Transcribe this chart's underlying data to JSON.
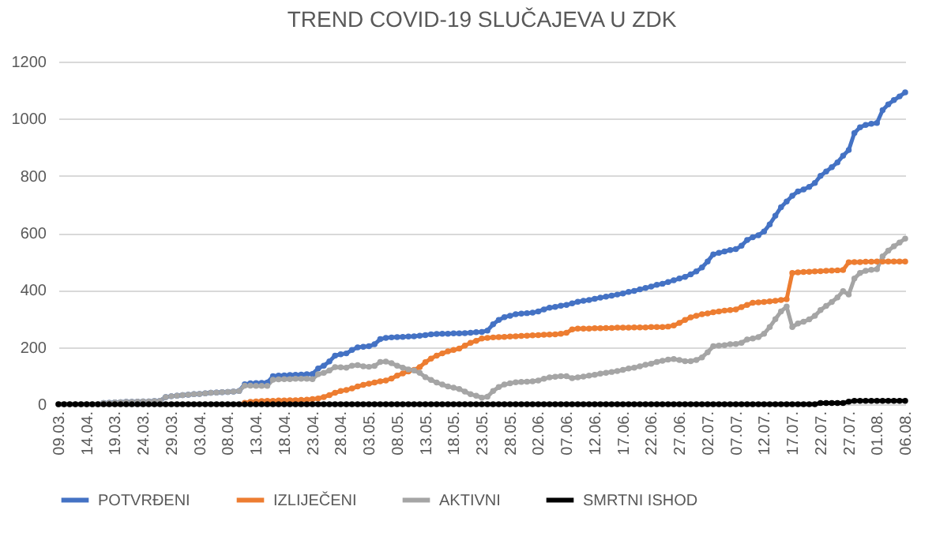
{
  "chart_data": {
    "type": "line",
    "title": "TREND COVID-19 SLUČAJEVA U ZDK",
    "x": [
      "--03-09",
      "--03-10",
      "--03-11",
      "--03-12",
      "--03-13",
      "--03-14",
      "--03-15",
      "--03-16",
      "--03-17",
      "--03-18",
      "--03-19",
      "--03-20",
      "--03-21",
      "--03-22",
      "--03-23",
      "--03-24",
      "--03-25",
      "--03-26",
      "--03-27",
      "--03-28",
      "--03-29",
      "--03-30",
      "--03-31",
      "--04-01",
      "--04-02",
      "--04-03",
      "--04-04",
      "--04-05",
      "--04-06",
      "--04-07",
      "--04-08",
      "--04-09",
      "--04-10",
      "--04-11",
      "--04-12",
      "--04-13",
      "--04-14",
      "--04-15",
      "--04-16",
      "--04-17",
      "--04-18",
      "--04-19",
      "--04-20",
      "--04-21",
      "--04-22",
      "--04-23",
      "--04-24",
      "--04-25",
      "--04-26",
      "--04-27",
      "--04-28",
      "--04-29",
      "--04-30",
      "--05-01",
      "--05-02",
      "--05-03",
      "--05-04",
      "--05-05",
      "--05-06",
      "--05-07",
      "--05-08",
      "--05-09",
      "--05-10",
      "--05-11",
      "--05-12",
      "--05-13",
      "--05-14",
      "--05-15",
      "--05-16",
      "--05-17",
      "--05-18",
      "--05-19",
      "--05-20",
      "--05-21",
      "--05-22",
      "--05-23",
      "--05-24",
      "--05-25",
      "--05-26",
      "--05-27",
      "--05-28",
      "--05-29",
      "--05-30",
      "--05-31",
      "--06-01",
      "--06-02",
      "--06-03",
      "--06-04",
      "--06-05",
      "--06-06",
      "--06-07",
      "--06-08",
      "--06-09",
      "--06-10",
      "--06-11",
      "--06-12",
      "--06-13",
      "--06-14",
      "--06-15",
      "--06-16",
      "--06-17",
      "--06-18",
      "--06-19",
      "--06-20",
      "--06-21",
      "--06-22",
      "--06-23",
      "--06-24",
      "--06-25",
      "--06-26",
      "--06-27",
      "--06-28",
      "--06-29",
      "--06-30",
      "--07-01",
      "--07-02",
      "--07-03",
      "--07-04",
      "--07-05",
      "--07-06",
      "--07-07",
      "--07-08",
      "--07-09",
      "--07-10",
      "--07-11",
      "--07-12",
      "--07-13",
      "--07-14",
      "--07-15",
      "--07-16",
      "--07-17",
      "--07-18",
      "--07-19",
      "--07-20",
      "--07-21",
      "--07-22",
      "--07-23",
      "--07-24",
      "--07-25",
      "--07-26",
      "--07-27",
      "--07-28",
      "--07-29",
      "--07-30",
      "--07-31",
      "--08-01",
      "--08-02",
      "--08-03",
      "--08-04",
      "--08-05",
      "--08-06"
    ],
    "xlim": [
      "--03-09",
      "--08-06"
    ],
    "xticks": [
      {
        "value": "--03-09",
        "label": "09.03."
      },
      {
        "value": "--03-14",
        "label": "14.04."
      },
      {
        "value": "--03-19",
        "label": "19.03."
      },
      {
        "value": "--03-24",
        "label": "24.03."
      },
      {
        "value": "--03-29",
        "label": "29.03."
      },
      {
        "value": "--04-03",
        "label": "03.04."
      },
      {
        "value": "--04-08",
        "label": "08.04."
      },
      {
        "value": "--04-13",
        "label": "13.04."
      },
      {
        "value": "--04-18",
        "label": "18.04."
      },
      {
        "value": "--04-23",
        "label": "23.04."
      },
      {
        "value": "--04-28",
        "label": "28.04."
      },
      {
        "value": "--05-03",
        "label": "03.05."
      },
      {
        "value": "--05-08",
        "label": "08.05."
      },
      {
        "value": "--05-13",
        "label": "13.05."
      },
      {
        "value": "--05-18",
        "label": "18.05."
      },
      {
        "value": "--05-23",
        "label": "23.05."
      },
      {
        "value": "--05-28",
        "label": "28.05."
      },
      {
        "value": "--06-02",
        "label": "02.06."
      },
      {
        "value": "--06-07",
        "label": "07.06."
      },
      {
        "value": "--06-12",
        "label": "12.06."
      },
      {
        "value": "--06-17",
        "label": "17.06."
      },
      {
        "value": "--06-22",
        "label": "22.06."
      },
      {
        "value": "--06-27",
        "label": "27.06."
      },
      {
        "value": "--07-02",
        "label": "02.07."
      },
      {
        "value": "--07-07",
        "label": "07.07."
      },
      {
        "value": "--07-12",
        "label": "12.07."
      },
      {
        "value": "--07-17",
        "label": "17.07."
      },
      {
        "value": "--07-22",
        "label": "22.07."
      },
      {
        "value": "--07-27",
        "label": "27.07."
      },
      {
        "value": "--08-01",
        "label": "01.08."
      },
      {
        "value": "--08-06",
        "label": "06.08."
      }
    ],
    "series": [
      {
        "name": "POTVRĐENI",
        "color": "#4472c4",
        "values": [
          null,
          null,
          null,
          null,
          null,
          null,
          null,
          null,
          4,
          5,
          6,
          7,
          8,
          8,
          9,
          10,
          10,
          11,
          12,
          25,
          28,
          30,
          32,
          33,
          35,
          36,
          38,
          40,
          41,
          42,
          43,
          44,
          46,
          70,
          73,
          74,
          75,
          76,
          98,
          100,
          101,
          102,
          103,
          104,
          105,
          106,
          125,
          135,
          150,
          170,
          175,
          178,
          190,
          199,
          201,
          203,
          210,
          228,
          232,
          234,
          235,
          236,
          237,
          238,
          240,
          242,
          245,
          246,
          247,
          247,
          248,
          248,
          249,
          250,
          252,
          253,
          258,
          280,
          295,
          305,
          310,
          315,
          317,
          319,
          321,
          325,
          332,
          338,
          341,
          345,
          348,
          353,
          359,
          362,
          365,
          369,
          373,
          377,
          380,
          384,
          388,
          393,
          397,
          402,
          407,
          412,
          418,
          422,
          428,
          434,
          440,
          446,
          455,
          465,
          479,
          500,
          525,
          530,
          535,
          540,
          543,
          555,
          575,
          585,
          592,
          605,
          630,
          660,
          690,
          710,
          730,
          745,
          752,
          761,
          775,
          800,
          815,
          830,
          847,
          870,
          890,
          950,
          970,
          978,
          982,
          985,
          1030,
          1050,
          1065,
          1078,
          1092
        ]
      },
      {
        "name": "IZLIJEČENI",
        "color": "#ed7d31",
        "values": [
          null,
          null,
          null,
          null,
          null,
          null,
          null,
          null,
          null,
          null,
          null,
          null,
          null,
          null,
          null,
          null,
          null,
          null,
          null,
          null,
          null,
          null,
          null,
          null,
          null,
          null,
          null,
          null,
          null,
          null,
          null,
          null,
          null,
          5,
          8,
          10,
          11,
          12,
          12,
          13,
          13,
          14,
          14,
          15,
          16,
          18,
          20,
          25,
          32,
          40,
          46,
          50,
          55,
          62,
          68,
          72,
          76,
          80,
          83,
          90,
          100,
          108,
          115,
          120,
          130,
          147,
          160,
          170,
          178,
          185,
          190,
          195,
          205,
          215,
          222,
          230,
          232,
          234,
          235,
          236,
          237,
          238,
          239,
          240,
          241,
          242,
          243,
          244,
          245,
          247,
          250,
          262,
          265,
          265,
          265,
          266,
          266,
          267,
          267,
          268,
          268,
          268,
          269,
          269,
          269,
          270,
          270,
          270,
          272,
          276,
          285,
          295,
          304,
          310,
          315,
          318,
          322,
          325,
          328,
          330,
          332,
          340,
          348,
          355,
          357,
          358,
          360,
          362,
          365,
          368,
          460,
          462,
          463,
          464,
          465,
          466,
          467,
          468,
          469,
          470,
          497,
          498,
          498,
          499,
          499,
          500,
          500,
          500,
          500,
          500,
          500
        ]
      },
      {
        "name": "AKTIVNI",
        "color": "#a5a5a5",
        "values": [
          0,
          0,
          0,
          0,
          0,
          0,
          0,
          0,
          4,
          5,
          6,
          7,
          8,
          8,
          9,
          10,
          10,
          11,
          12,
          25,
          28,
          30,
          32,
          33,
          35,
          36,
          38,
          40,
          41,
          42,
          43,
          44,
          46,
          65,
          65,
          64,
          64,
          64,
          86,
          87,
          88,
          88,
          89,
          89,
          89,
          88,
          105,
          110,
          118,
          130,
          129,
          128,
          135,
          137,
          133,
          131,
          134,
          148,
          149,
          144,
          135,
          128,
          122,
          118,
          110,
          95,
          85,
          76,
          69,
          62,
          58,
          53,
          44,
          35,
          30,
          23,
          26,
          46,
          60,
          69,
          73,
          77,
          78,
          79,
          80,
          83,
          89,
          94,
          96,
          98,
          98,
          91,
          94,
          97,
          100,
          103,
          107,
          110,
          113,
          116,
          120,
          125,
          128,
          133,
          138,
          142,
          148,
          152,
          156,
          158,
          155,
          151,
          151,
          155,
          164,
          182,
          203,
          205,
          207,
          210,
          211,
          215,
          227,
          230,
          235,
          247,
          270,
          298,
          325,
          342,
          270,
          283,
          289,
          297,
          310,
          330,
          344,
          358,
          374,
          396,
          384,
          440,
          460,
          467,
          471,
          473,
          518,
          538,
          553,
          566,
          580
        ]
      },
      {
        "name": "SMRTNI ISHOD",
        "color": "#000000",
        "values": [
          0,
          0,
          0,
          0,
          0,
          0,
          0,
          0,
          0,
          0,
          0,
          0,
          0,
          0,
          0,
          0,
          0,
          0,
          0,
          0,
          0,
          0,
          0,
          0,
          0,
          0,
          0,
          0,
          0,
          0,
          0,
          0,
          0,
          0,
          0,
          0,
          0,
          0,
          0,
          0,
          0,
          0,
          0,
          0,
          0,
          0,
          0,
          0,
          0,
          0,
          0,
          0,
          0,
          0,
          0,
          0,
          0,
          0,
          0,
          0,
          0,
          0,
          0,
          0,
          0,
          0,
          0,
          0,
          0,
          0,
          0,
          0,
          0,
          0,
          0,
          0,
          0,
          0,
          0,
          0,
          0,
          0,
          0,
          0,
          0,
          0,
          0,
          0,
          0,
          0,
          0,
          0,
          0,
          0,
          0,
          0,
          0,
          0,
          0,
          0,
          0,
          0,
          0,
          0,
          0,
          0,
          0,
          0,
          0,
          0,
          0,
          0,
          0,
          0,
          0,
          0,
          0,
          0,
          0,
          0,
          0,
          0,
          0,
          0,
          0,
          0,
          0,
          0,
          0,
          0,
          0,
          0,
          0,
          0,
          0,
          4,
          4,
          4,
          4,
          4,
          9,
          12,
          12,
          12,
          12,
          12,
          12,
          12,
          12,
          12,
          12
        ]
      }
    ],
    "ylim": [
      0,
      1200
    ],
    "yticks": [
      0,
      200,
      400,
      600,
      800,
      {
        "value": 1000,
        "label": "1000"
      },
      {
        "value": 1200,
        "label": "1200"
      }
    ],
    "grid": "y",
    "legend": "bottom",
    "marker": "circle"
  }
}
